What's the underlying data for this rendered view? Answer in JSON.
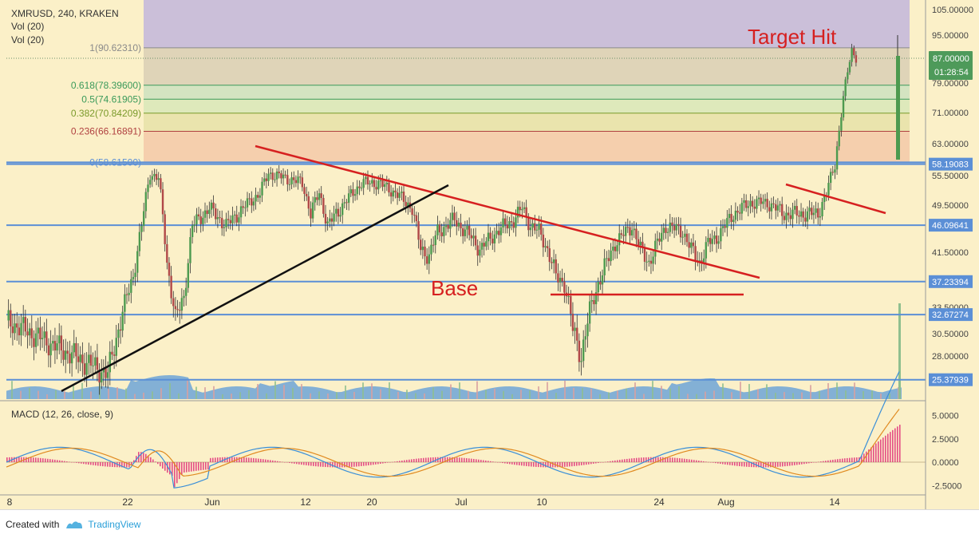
{
  "header": {
    "symbol": "XMRUSD, 240, KRAKEN",
    "indicators": [
      "Vol (20)",
      "Vol (20)"
    ]
  },
  "annotations": {
    "target": "Target Hit",
    "base": "Base"
  },
  "macd_label": "MACD (12, 26, close, 9)",
  "footer": {
    "created": "Created with",
    "brand": "TradingView"
  },
  "colors": {
    "background": "#fbf0c8",
    "up": "#4d9a4f",
    "down": "#b04848",
    "support_lines": "#5b8fd6",
    "trend_red": "#d62020",
    "trend_black": "#111111",
    "macd_line": "#3a8fd8",
    "signal_line": "#e08a20",
    "histogram": "#e0307a"
  },
  "price_axis": {
    "ticks": [
      "105.00000",
      "95.00000",
      "87.00000",
      "79.00000",
      "71.00000",
      "63.00000",
      "55.50000",
      "49.50000",
      "41.50000",
      "33.50000",
      "30.50000",
      "28.00000"
    ],
    "current_price": "87.00000",
    "countdown": "01:28:54"
  },
  "levels": [
    {
      "label": "58.19083",
      "value": 58.19083
    },
    {
      "label": "46.09641",
      "value": 46.09641
    },
    {
      "label": "37.23394",
      "value": 37.23394
    },
    {
      "label": "32.67274",
      "value": 32.67274
    },
    {
      "label": "25.37939",
      "value": 25.37939
    }
  ],
  "fibonacci": [
    {
      "label": "1(90.62310)",
      "value": 90.6231
    },
    {
      "label": "0.618(78.39600)",
      "value": 78.396
    },
    {
      "label": "0.5(74.61905)",
      "value": 74.61905
    },
    {
      "label": "0.382(70.84209)",
      "value": 70.84209
    },
    {
      "label": "0.236(66.16891)",
      "value": 66.16891
    },
    {
      "label": "0(58.61500)",
      "value": 58.615
    }
  ],
  "macd_axis": [
    "5.0000",
    "2.5000",
    "0.0000",
    "-2.5000"
  ],
  "chart_data": {
    "type": "candlestick",
    "title": "XMRUSD, 240, KRAKEN",
    "x_tick_labels": [
      "8",
      "22",
      "Jun",
      "12",
      "20",
      "Jul",
      "10",
      "24",
      "Aug",
      "14"
    ],
    "price_series": [
      [
        0,
        32
      ],
      [
        4,
        30
      ],
      [
        8,
        28
      ],
      [
        12,
        26
      ],
      [
        13,
        30
      ],
      [
        15,
        38
      ],
      [
        16,
        46
      ],
      [
        17,
        56
      ],
      [
        18,
        55
      ],
      [
        19,
        40
      ],
      [
        20,
        32
      ],
      [
        21,
        35
      ],
      [
        22,
        46
      ],
      [
        24,
        49
      ],
      [
        26,
        46
      ],
      [
        28,
        49
      ],
      [
        30,
        52
      ],
      [
        31,
        56
      ],
      [
        33,
        55
      ],
      [
        35,
        54
      ],
      [
        36,
        48
      ],
      [
        37,
        52
      ],
      [
        38,
        46
      ],
      [
        40,
        50
      ],
      [
        42,
        54
      ],
      [
        44,
        54
      ],
      [
        46,
        52
      ],
      [
        48,
        49
      ],
      [
        49,
        42
      ],
      [
        50,
        41
      ],
      [
        51,
        45
      ],
      [
        53,
        47
      ],
      [
        55,
        44
      ],
      [
        56,
        42
      ],
      [
        58,
        45
      ],
      [
        60,
        47
      ],
      [
        61,
        49
      ],
      [
        62,
        46
      ],
      [
        63,
        45
      ],
      [
        64,
        42
      ],
      [
        65,
        38
      ],
      [
        66,
        37
      ],
      [
        67,
        31
      ],
      [
        68,
        28
      ],
      [
        69,
        33
      ],
      [
        70,
        37
      ],
      [
        71,
        40
      ],
      [
        72,
        43
      ],
      [
        74,
        46
      ],
      [
        75,
        42
      ],
      [
        76,
        40
      ],
      [
        78,
        46
      ],
      [
        80,
        45
      ],
      [
        81,
        42
      ],
      [
        82,
        40
      ],
      [
        83,
        43
      ],
      [
        84,
        44
      ],
      [
        86,
        48
      ],
      [
        88,
        50
      ],
      [
        90,
        50
      ],
      [
        92,
        48
      ],
      [
        94,
        48
      ],
      [
        96,
        48
      ],
      [
        97,
        52
      ],
      [
        98,
        58
      ],
      [
        99,
        75
      ],
      [
        100,
        90
      ],
      [
        100.5,
        87
      ]
    ],
    "x_range": [
      0,
      104
    ],
    "ylim": [
      25,
      108
    ],
    "macd_ylim": [
      -3.5,
      6.5
    ]
  }
}
